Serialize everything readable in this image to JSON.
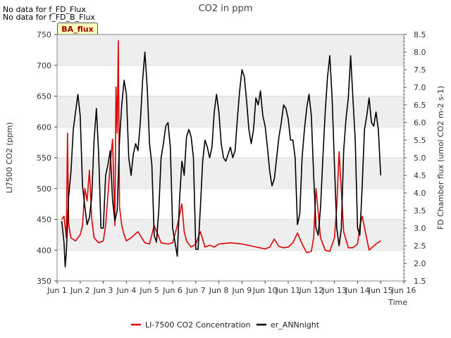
{
  "header_notes": [
    "No data for f_FD_Flux",
    "No data for f_FD_B_Flux"
  ],
  "badge_label": "BA_flux",
  "chart_data": {
    "type": "line",
    "title": "CO2 in ppm",
    "xlabel": "Time",
    "ylabel_left": "LI7500 CO2 (ppm)",
    "ylabel_right": "FD Chamber flux (umol CO2 m-2 s-1)",
    "xlim": [
      1,
      16
    ],
    "ylim_left": [
      350,
      750
    ],
    "ylim_right": [
      1.5,
      8.5
    ],
    "xticks": [
      1,
      2,
      3,
      4,
      5,
      6,
      7,
      8,
      9,
      10,
      11,
      12,
      13,
      14,
      15,
      16
    ],
    "xtick_labels": [
      "Jun 1",
      "Jun 2",
      "Jun 3",
      "Jun 4",
      "Jun 5",
      "Jun 6",
      "Jun 7",
      "Jun 8",
      "Jun 9",
      "Jun 10",
      "Jun 11",
      "Jun 12",
      "Jun 13",
      "Jun 14",
      "Jun 15",
      "Jun 16"
    ],
    "yticks_left": [
      350,
      400,
      450,
      500,
      550,
      600,
      650,
      700,
      750
    ],
    "yticks_right": [
      1.5,
      2.0,
      2.5,
      3.0,
      3.5,
      4.0,
      4.5,
      5.0,
      5.5,
      6.0,
      6.5,
      7.0,
      7.5,
      8.0,
      8.5
    ],
    "ytick_labels_right": [
      "1.5",
      "2.0",
      "2.5",
      "3.0",
      "3.5",
      "4.0",
      "4.5",
      "5.0",
      "5.5",
      "6.0",
      "6.5",
      "7.0",
      "7.5",
      "8.0",
      "8.5"
    ],
    "grid": true,
    "legend_position": "bottom-center",
    "series": [
      {
        "name": "LI-7500 CO2 Concentration",
        "color": "#dd0000",
        "axis": "left",
        "x": [
          1.2,
          1.3,
          1.4,
          1.45,
          1.5,
          1.55,
          1.6,
          1.8,
          2.0,
          2.1,
          2.2,
          2.3,
          2.4,
          2.5,
          2.6,
          2.8,
          3.0,
          3.1,
          3.2,
          3.3,
          3.4,
          3.5,
          3.55,
          3.6,
          3.65,
          3.7,
          3.8,
          3.9,
          4.0,
          4.2,
          4.5,
          4.8,
          5.0,
          5.2,
          5.5,
          5.8,
          6.0,
          6.2,
          6.4,
          6.5,
          6.6,
          6.8,
          7.0,
          7.2,
          7.4,
          7.6,
          7.8,
          8.0,
          8.5,
          9.0,
          9.5,
          10.0,
          10.2,
          10.4,
          10.6,
          10.8,
          11.0,
          11.2,
          11.4,
          11.6,
          11.8,
          12.0,
          12.1,
          12.2,
          12.4,
          12.6,
          12.8,
          13.0,
          13.1,
          13.2,
          13.4,
          13.6,
          13.8,
          14.0,
          14.1,
          14.2,
          14.5,
          14.8,
          15.0
        ],
        "y": [
          450,
          455,
          420,
          590,
          445,
          430,
          420,
          415,
          425,
          440,
          500,
          480,
          530,
          450,
          420,
          412,
          415,
          440,
          490,
          540,
          580,
          440,
          665,
          590,
          740,
          470,
          440,
          425,
          415,
          420,
          430,
          412,
          410,
          440,
          412,
          410,
          412,
          440,
          475,
          430,
          415,
          405,
          410,
          430,
          405,
          408,
          405,
          410,
          412,
          410,
          406,
          402,
          405,
          418,
          406,
          404,
          405,
          412,
          428,
          410,
          396,
          398,
          420,
          500,
          420,
          400,
          398,
          420,
          470,
          560,
          430,
          404,
          404,
          410,
          440,
          455,
          400,
          410,
          415
        ]
      },
      {
        "name": "er_ANNnight",
        "color": "#000000",
        "axis": "right",
        "x": [
          1.2,
          1.3,
          1.35,
          1.4,
          1.5,
          1.6,
          1.7,
          1.8,
          1.9,
          2.0,
          2.1,
          2.2,
          2.3,
          2.4,
          2.5,
          2.6,
          2.7,
          2.8,
          2.9,
          3.0,
          3.1,
          3.2,
          3.3,
          3.4,
          3.5,
          3.6,
          3.7,
          3.8,
          3.9,
          4.0,
          4.1,
          4.2,
          4.3,
          4.4,
          4.5,
          4.6,
          4.7,
          4.8,
          4.9,
          5.0,
          5.1,
          5.2,
          5.3,
          5.4,
          5.5,
          5.6,
          5.7,
          5.8,
          5.9,
          6.0,
          6.1,
          6.2,
          6.3,
          6.4,
          6.5,
          6.6,
          6.7,
          6.8,
          6.9,
          7.0,
          7.1,
          7.2,
          7.3,
          7.4,
          7.5,
          7.6,
          7.7,
          7.8,
          7.9,
          8.0,
          8.1,
          8.2,
          8.3,
          8.4,
          8.5,
          8.6,
          8.7,
          8.8,
          8.9,
          9.0,
          9.1,
          9.2,
          9.3,
          9.4,
          9.5,
          9.6,
          9.7,
          9.8,
          9.9,
          10.0,
          10.1,
          10.2,
          10.3,
          10.4,
          10.5,
          10.6,
          10.7,
          10.8,
          10.9,
          11.0,
          11.1,
          11.2,
          11.3,
          11.4,
          11.5,
          11.6,
          11.7,
          11.8,
          11.9,
          12.0,
          12.1,
          12.2,
          12.3,
          12.4,
          12.5,
          12.6,
          12.7,
          12.8,
          12.9,
          13.0,
          13.1,
          13.2,
          13.3,
          13.4,
          13.5,
          13.6,
          13.7,
          13.8,
          13.9,
          14.0,
          14.1,
          14.2,
          14.3,
          14.4,
          14.5,
          14.6,
          14.7,
          14.8,
          14.9,
          15.0
        ],
        "y": [
          3.2,
          2.6,
          1.9,
          2.3,
          3.9,
          4.6,
          5.8,
          6.3,
          6.8,
          6.2,
          4.2,
          3.6,
          3.1,
          3.3,
          3.9,
          5.5,
          6.4,
          5.1,
          3.0,
          3.0,
          4.5,
          4.8,
          5.2,
          3.8,
          3.2,
          3.5,
          5.5,
          6.5,
          7.2,
          6.8,
          5.0,
          4.5,
          5.1,
          5.4,
          5.2,
          6.0,
          7.2,
          8.0,
          7.0,
          5.4,
          4.8,
          2.8,
          2.6,
          3.5,
          5.0,
          5.4,
          5.9,
          6.0,
          5.3,
          3.0,
          2.6,
          2.2,
          3.8,
          4.9,
          4.5,
          5.6,
          5.8,
          5.6,
          5.0,
          2.4,
          2.4,
          3.6,
          4.9,
          5.5,
          5.3,
          5.0,
          5.3,
          6.3,
          6.8,
          6.3,
          5.4,
          5.0,
          4.9,
          5.1,
          5.3,
          5.0,
          5.2,
          6.1,
          6.9,
          7.5,
          7.3,
          6.6,
          5.8,
          5.4,
          5.8,
          6.7,
          6.5,
          6.9,
          6.2,
          5.9,
          5.3,
          4.6,
          4.2,
          4.4,
          5.0,
          5.6,
          6.0,
          6.5,
          6.4,
          6.1,
          5.5,
          5.5,
          5.0,
          3.1,
          3.4,
          5.0,
          5.8,
          6.4,
          6.8,
          6.2,
          4.5,
          3.0,
          2.8,
          3.6,
          5.0,
          6.3,
          7.3,
          7.9,
          6.7,
          4.8,
          3.0,
          2.5,
          3.0,
          5.2,
          6.1,
          6.7,
          7.9,
          6.7,
          5.5,
          3.0,
          2.8,
          4.2,
          5.8,
          6.2,
          6.7,
          6.0,
          5.9,
          6.3,
          5.8,
          4.5
        ]
      }
    ]
  }
}
